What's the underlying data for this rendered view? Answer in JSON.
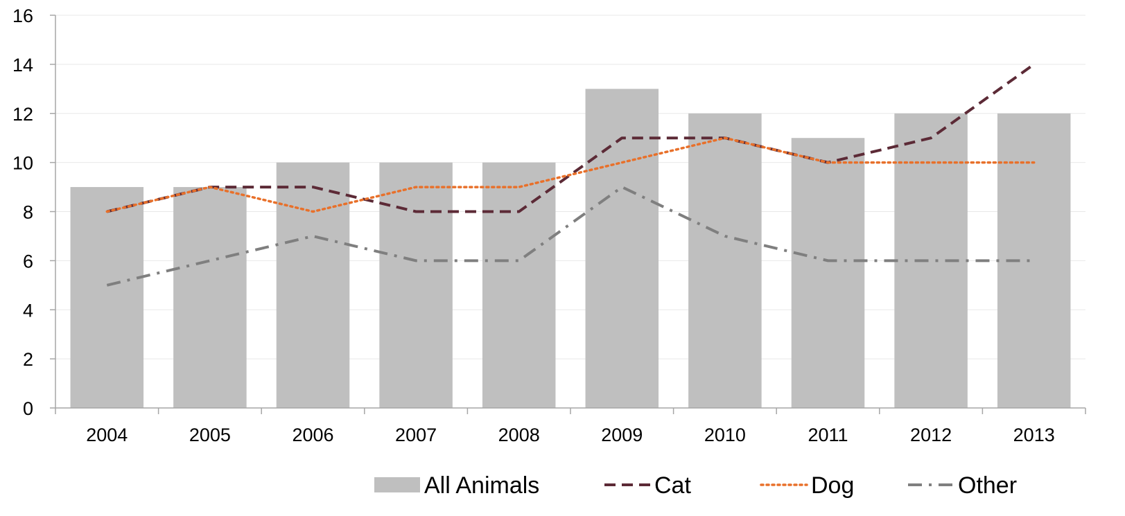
{
  "chart_data": {
    "type": "bar",
    "categories": [
      "2004",
      "2005",
      "2006",
      "2007",
      "2008",
      "2009",
      "2010",
      "2011",
      "2012",
      "2013"
    ],
    "series": [
      {
        "name": "All Animals",
        "type": "bar",
        "color": "#bfbfbf",
        "values": [
          9,
          9,
          10,
          10,
          10,
          13,
          12,
          11,
          12,
          12
        ]
      },
      {
        "name": "Cat",
        "type": "line",
        "style": "dashed",
        "color": "#5c2a36",
        "values": [
          8,
          9,
          9,
          8,
          8,
          11,
          11,
          10,
          11,
          14
        ]
      },
      {
        "name": "Dog",
        "type": "line",
        "style": "dotted",
        "color": "#e8702a",
        "values": [
          8,
          9,
          8,
          9,
          9,
          10,
          11,
          10,
          10,
          10
        ]
      },
      {
        "name": "Other",
        "type": "line",
        "style": "dash-dot",
        "color": "#7f7f7f",
        "values": [
          5,
          6,
          7,
          6,
          6,
          9,
          7,
          6,
          6,
          6
        ]
      }
    ],
    "y_ticks": [
      "0",
      "2",
      "4",
      "6",
      "8",
      "10",
      "12",
      "14",
      "16"
    ],
    "ylim": [
      0,
      16
    ],
    "title": "",
    "xlabel": "",
    "ylabel": "",
    "grid": true,
    "legend_position": "bottom"
  }
}
